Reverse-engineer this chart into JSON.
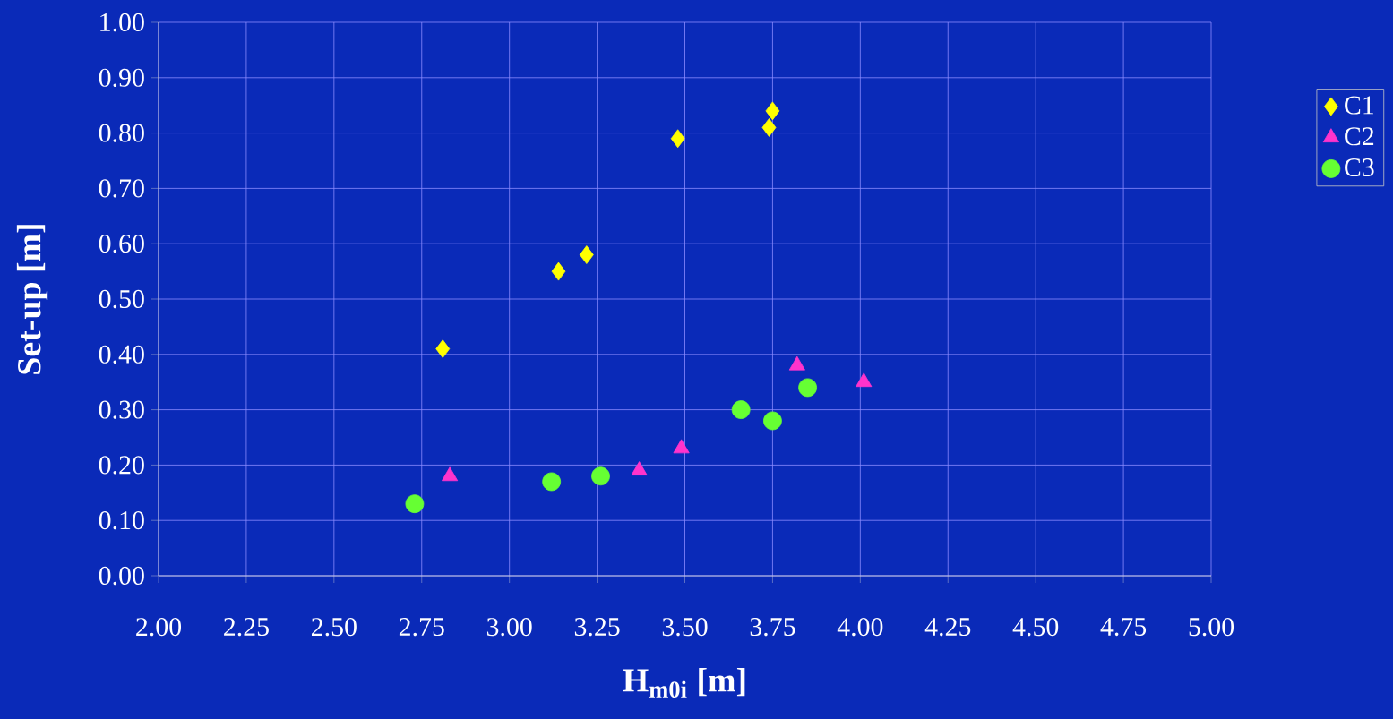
{
  "chart_data": {
    "type": "scatter",
    "xlabel": "**H$_{m0i}$ [m]**",
    "ylabel": "**Set-up [m]**",
    "xlim": [
      2,
      5
    ],
    "ylim": [
      0,
      1
    ],
    "xticks": [
      {
        "value": 2,
        "label": "2.00"
      },
      {
        "value": 2.25,
        "label": "2.25"
      },
      {
        "value": 2.5,
        "label": "2.50"
      },
      {
        "value": 2.75,
        "label": "2.75"
      },
      {
        "value": 3,
        "label": "3.00"
      },
      {
        "value": 3.25,
        "label": "3.25"
      },
      {
        "value": 3.5,
        "label": "3.50"
      },
      {
        "value": 3.75,
        "label": "3.75"
      },
      {
        "value": 4,
        "label": "4.00"
      },
      {
        "value": 4.25,
        "label": "4.25"
      },
      {
        "value": 4.5,
        "label": "4.50"
      },
      {
        "value": 4.75,
        "label": "4.75"
      },
      {
        "value": 5,
        "label": "5.00"
      }
    ],
    "yticks": [
      {
        "value": 0,
        "label": "0.00"
      },
      {
        "value": 0.1,
        "label": "0.10"
      },
      {
        "value": 0.2,
        "label": "0.20"
      },
      {
        "value": 0.3,
        "label": "0.30"
      },
      {
        "value": 0.4,
        "label": "0.40"
      },
      {
        "value": 0.5,
        "label": "0.50"
      },
      {
        "value": 0.6,
        "label": "0.60"
      },
      {
        "value": 0.7,
        "label": "0.70"
      },
      {
        "value": 0.8,
        "label": "0.80"
      },
      {
        "value": 0.9,
        "label": "0.90"
      },
      {
        "value": 1,
        "label": "1.00"
      }
    ],
    "grid": true,
    "legend": "right",
    "series": [
      {
        "name": "C1",
        "color": "#ffff00",
        "marker": "diamond",
        "x": [
          2.81,
          3.14,
          3.22,
          3.48,
          3.74,
          3.75
        ],
        "values": [
          0.41,
          0.55,
          0.58,
          0.79,
          0.81,
          0.84
        ]
      },
      {
        "name": "C2",
        "color": "#ff33cc",
        "marker": "triangle",
        "x": [
          2.83,
          3.37,
          3.49,
          3.82,
          4.01
        ],
        "values": [
          0.18,
          0.19,
          0.23,
          0.38,
          0.35
        ]
      },
      {
        "name": "C3",
        "color": "#66ff33",
        "marker": "circle",
        "x": [
          2.73,
          3.12,
          3.26,
          3.66,
          3.75,
          3.85
        ],
        "values": [
          0.13,
          0.17,
          0.18,
          0.3,
          0.28,
          0.34
        ]
      }
    ]
  }
}
